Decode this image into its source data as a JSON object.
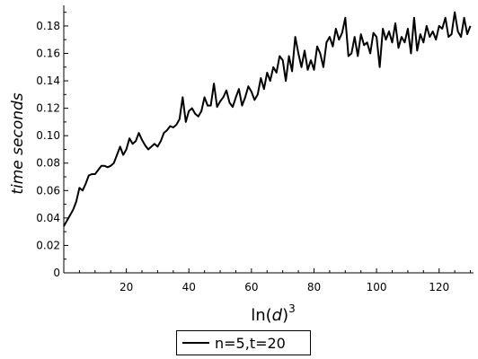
{
  "chart_data": {
    "type": "line",
    "xlabel": "ln(d)",
    "xlabel_base": "ln",
    "xlabel_var": "d",
    "xlabel_exponent": "3",
    "ylabel": "time seconds",
    "xlim": [
      0,
      131
    ],
    "ylim": [
      0,
      0.195
    ],
    "x_ticks": [
      20,
      40,
      60,
      80,
      100,
      120
    ],
    "y_ticks": [
      0,
      0.02,
      0.04,
      0.06,
      0.08,
      0.1,
      0.12,
      0.14,
      0.16,
      0.18
    ],
    "y_tick_labels": [
      "0",
      "0.02",
      "0.04",
      "0.06",
      "0.08",
      "0.10",
      "0.12",
      "0.14",
      "0.16",
      "0.18"
    ],
    "x_tick_labels": [
      "20",
      "40",
      "60",
      "80",
      "100",
      "120"
    ],
    "grid": false,
    "legend_position": "bottom-center",
    "series": [
      {
        "name": "n=5,t=20",
        "color": "#000000",
        "x": [
          0,
          1,
          2,
          3,
          4,
          5,
          6,
          7,
          8,
          9,
          10,
          11,
          12,
          13,
          14,
          15,
          16,
          17,
          18,
          19,
          20,
          21,
          22,
          23,
          24,
          25,
          26,
          27,
          28,
          29,
          30,
          31,
          32,
          33,
          34,
          35,
          36,
          37,
          38,
          39,
          40,
          41,
          42,
          43,
          44,
          45,
          46,
          47,
          48,
          49,
          50,
          51,
          52,
          53,
          54,
          55,
          56,
          57,
          58,
          59,
          60,
          61,
          62,
          63,
          64,
          65,
          66,
          67,
          68,
          69,
          70,
          71,
          72,
          73,
          74,
          75,
          76,
          77,
          78,
          79,
          80,
          81,
          82,
          83,
          84,
          85,
          86,
          87,
          88,
          89,
          90,
          91,
          92,
          93,
          94,
          95,
          96,
          97,
          98,
          99,
          100,
          101,
          102,
          103,
          104,
          105,
          106,
          107,
          108,
          109,
          110,
          111,
          112,
          113,
          114,
          115,
          116,
          117,
          118,
          119,
          120,
          121,
          122,
          123,
          124,
          125,
          126,
          127,
          128,
          129,
          130
        ],
        "values": [
          0.034,
          0.038,
          0.042,
          0.046,
          0.052,
          0.062,
          0.06,
          0.065,
          0.071,
          0.072,
          0.072,
          0.075,
          0.078,
          0.078,
          0.077,
          0.078,
          0.08,
          0.086,
          0.092,
          0.086,
          0.09,
          0.098,
          0.094,
          0.096,
          0.102,
          0.097,
          0.093,
          0.09,
          0.092,
          0.094,
          0.092,
          0.096,
          0.102,
          0.104,
          0.107,
          0.106,
          0.108,
          0.112,
          0.128,
          0.11,
          0.118,
          0.12,
          0.116,
          0.114,
          0.118,
          0.128,
          0.122,
          0.122,
          0.138,
          0.121,
          0.125,
          0.128,
          0.133,
          0.124,
          0.121,
          0.128,
          0.134,
          0.122,
          0.128,
          0.136,
          0.132,
          0.126,
          0.13,
          0.142,
          0.134,
          0.146,
          0.14,
          0.15,
          0.146,
          0.158,
          0.155,
          0.14,
          0.158,
          0.147,
          0.172,
          0.16,
          0.15,
          0.162,
          0.148,
          0.155,
          0.148,
          0.165,
          0.16,
          0.15,
          0.168,
          0.172,
          0.165,
          0.178,
          0.17,
          0.175,
          0.186,
          0.158,
          0.16,
          0.172,
          0.158,
          0.174,
          0.166,
          0.168,
          0.16,
          0.175,
          0.172,
          0.15,
          0.178,
          0.17,
          0.176,
          0.168,
          0.182,
          0.164,
          0.172,
          0.168,
          0.178,
          0.16,
          0.186,
          0.162,
          0.174,
          0.168,
          0.18,
          0.172,
          0.176,
          0.17,
          0.18,
          0.178,
          0.186,
          0.172,
          0.174,
          0.19,
          0.176,
          0.172,
          0.186,
          0.174,
          0.18
        ]
      }
    ]
  }
}
